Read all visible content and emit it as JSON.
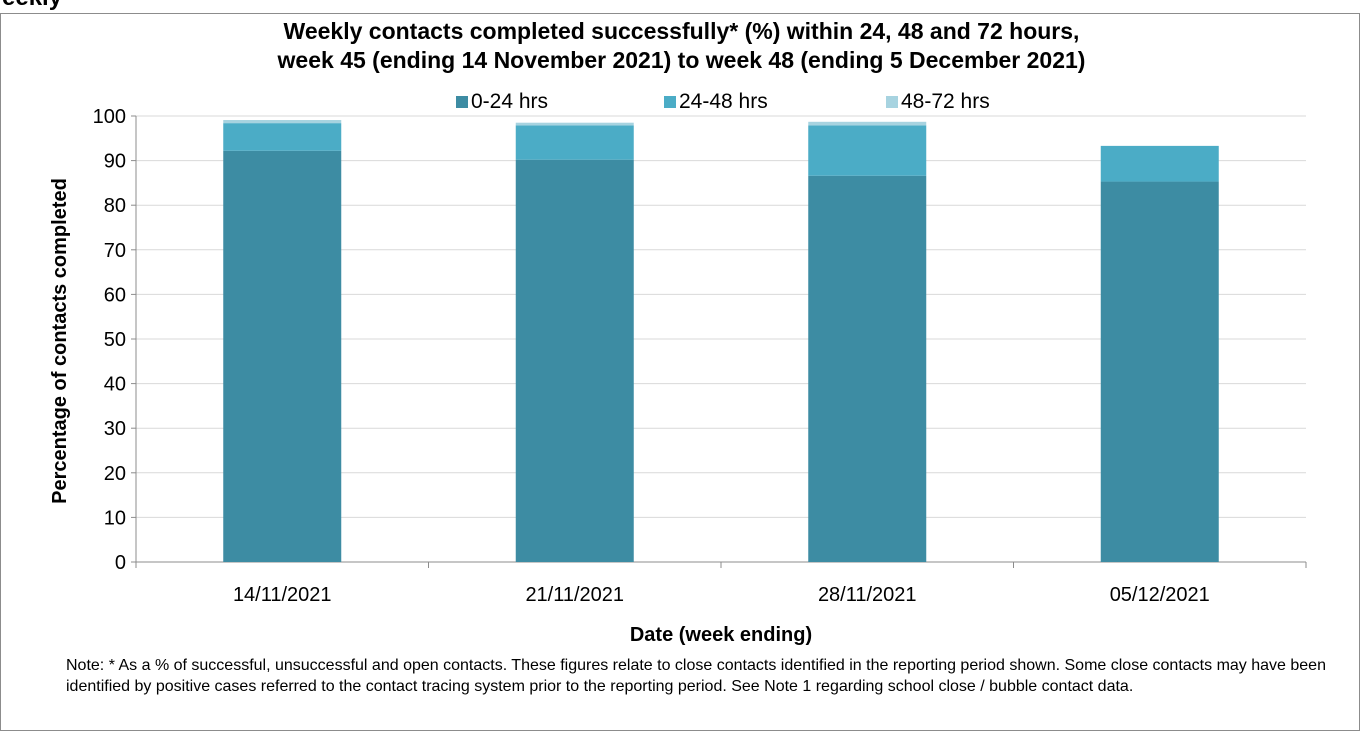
{
  "page": {
    "top_heading": "eekly"
  },
  "chart_data": {
    "type": "bar",
    "stacked": true,
    "title_line1": "Weekly contacts completed successfully* (%) within 24, 48 and 72 hours,",
    "title_line2": "week 45 (ending 14 November 2021) to week 48 (ending 5 December 2021)",
    "xlabel": "Date (week ending)",
    "ylabel": "Percentage of contacts completed",
    "ylim": [
      0,
      100
    ],
    "yticks": [
      0,
      10,
      20,
      30,
      40,
      50,
      60,
      70,
      80,
      90,
      100
    ],
    "categories": [
      "14/11/2021",
      "21/11/2021",
      "28/11/2021",
      "05/12/2021"
    ],
    "series": [
      {
        "name": "0-24 hrs",
        "color": "#3d8ca3",
        "values": [
          92.2,
          90.2,
          86.6,
          85.3
        ]
      },
      {
        "name": "24-48 hrs",
        "color": "#4bacc6",
        "values": [
          6.2,
          7.7,
          11.3,
          8.0
        ]
      },
      {
        "name": "48-72 hrs",
        "color": "#a7d3e0",
        "values": [
          0.7,
          0.6,
          0.8,
          0.0
        ]
      }
    ],
    "grid": true,
    "legend_position": "top"
  },
  "note": "Note: * As a % of successful, unsuccessful and open contacts. These figures relate to close contacts identified in the reporting period shown. Some close contacts may have been identified by positive cases referred to the contact tracing system prior to the reporting period. See Note 1 regarding school close / bubble contact data."
}
